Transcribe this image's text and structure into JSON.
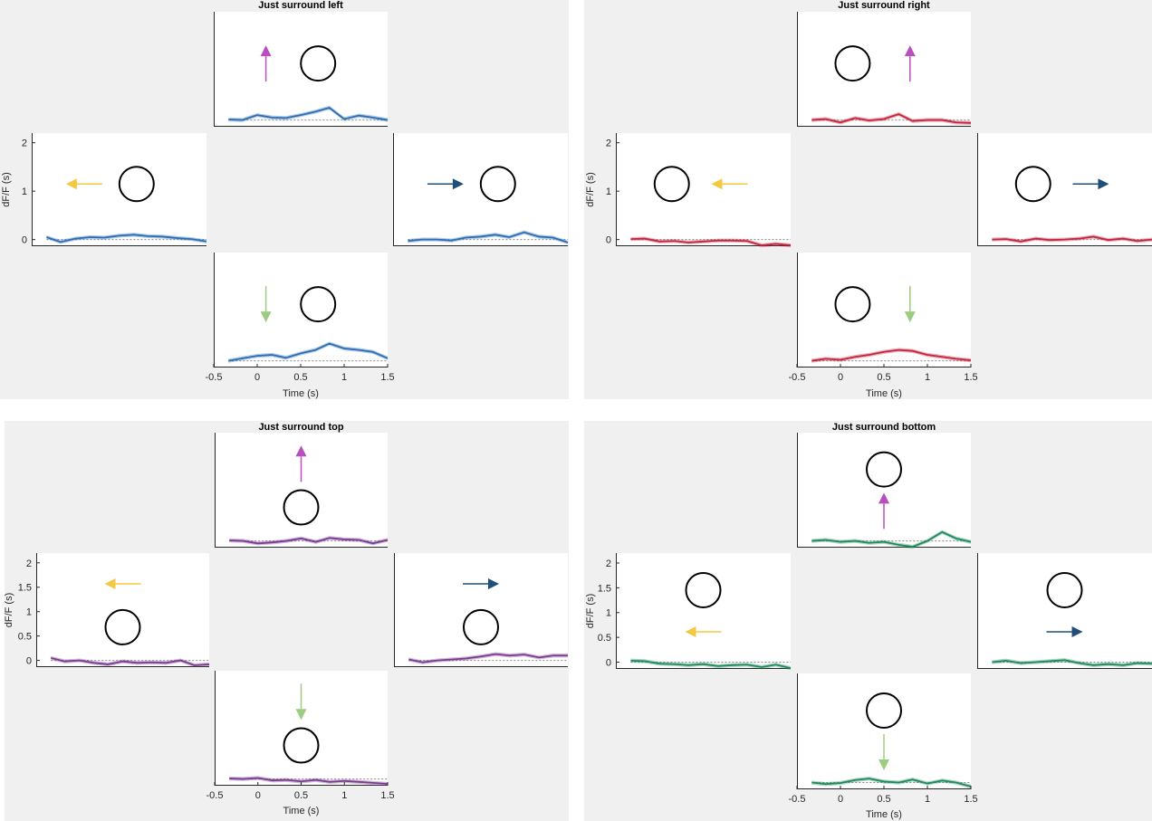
{
  "chart_data": [
    {
      "type": "line",
      "title": "Just surround left",
      "xlabel": "Time (s)",
      "ylabel": "dF/F (s)",
      "xlim": [
        -0.5,
        1.5
      ],
      "ylim": [
        -0.1,
        2.2
      ],
      "x_ticks": [
        "-0.5",
        "0",
        "0.5",
        "1",
        "1.5"
      ],
      "y_ticks": [
        "0",
        "1",
        "2"
      ],
      "line_color": "#2a6db4",
      "subplots": [
        {
          "position": "top",
          "direction": "up",
          "arrow_color": "#b94fbf",
          "circle_side": "right",
          "x": [
            -0.33,
            -0.17,
            0,
            0.17,
            0.33,
            0.5,
            0.67,
            0.83,
            1.0,
            1.17,
            1.33,
            1.5
          ],
          "y": [
            0.01,
            0.0,
            0.1,
            0.05,
            0.04,
            0.1,
            0.17,
            0.25,
            0.02,
            0.09,
            0.05,
            0.0
          ]
        },
        {
          "position": "left",
          "direction": "left",
          "arrow_color": "#f5c842",
          "circle_side": "right",
          "x": [
            -0.33,
            -0.17,
            0,
            0.17,
            0.33,
            0.5,
            0.67,
            0.83,
            1.0,
            1.17,
            1.33,
            1.5
          ],
          "y": [
            0.05,
            -0.05,
            0.02,
            0.05,
            0.04,
            0.08,
            0.1,
            0.07,
            0.06,
            0.03,
            0.01,
            -0.04
          ]
        },
        {
          "position": "right",
          "direction": "right",
          "arrow_color": "#1f4e79",
          "circle_side": "right",
          "x": [
            -0.33,
            -0.17,
            0,
            0.17,
            0.33,
            0.5,
            0.67,
            0.83,
            1.0,
            1.17,
            1.33,
            1.5
          ],
          "y": [
            -0.03,
            0.0,
            0.0,
            -0.02,
            0.04,
            0.06,
            0.1,
            0.05,
            0.15,
            0.06,
            0.04,
            -0.06
          ]
        },
        {
          "position": "bottom",
          "direction": "down",
          "arrow_color": "#9ccc7f",
          "circle_side": "right",
          "x": [
            -0.33,
            -0.17,
            0,
            0.17,
            0.33,
            0.5,
            0.67,
            0.83,
            1.0,
            1.17,
            1.33,
            1.5
          ],
          "y": [
            0.0,
            0.05,
            0.1,
            0.12,
            0.06,
            0.15,
            0.22,
            0.35,
            0.25,
            0.22,
            0.18,
            0.05
          ]
        }
      ]
    },
    {
      "type": "line",
      "title": "Just surround right",
      "xlabel": "Time (s)",
      "ylabel": "dF/F (s)",
      "xlim": [
        -0.5,
        1.5
      ],
      "ylim": [
        -0.1,
        2.2
      ],
      "x_ticks": [
        "-0.5",
        "0",
        "0.5",
        "1",
        "1.5"
      ],
      "y_ticks": [
        "0",
        "1",
        "2"
      ],
      "line_color": "#c0263e",
      "subplots": [
        {
          "position": "top",
          "direction": "up",
          "arrow_color": "#b94fbf",
          "circle_side": "left",
          "x": [
            -0.33,
            -0.17,
            0,
            0.17,
            0.33,
            0.5,
            0.67,
            0.83,
            1.0,
            1.17,
            1.33,
            1.5
          ],
          "y": [
            0.0,
            0.02,
            -0.05,
            0.04,
            -0.01,
            0.02,
            0.12,
            -0.02,
            0.0,
            0.0,
            -0.05,
            -0.06
          ]
        },
        {
          "position": "left",
          "direction": "left",
          "arrow_color": "#f5c842",
          "circle_side": "left",
          "x": [
            -0.33,
            -0.17,
            0,
            0.17,
            0.33,
            0.5,
            0.67,
            0.83,
            1.0,
            1.17,
            1.33,
            1.5
          ],
          "y": [
            0.01,
            0.02,
            -0.04,
            -0.03,
            -0.06,
            -0.04,
            -0.02,
            -0.02,
            -0.03,
            -0.12,
            -0.09,
            -0.12
          ]
        },
        {
          "position": "right",
          "direction": "right",
          "arrow_color": "#1f4e79",
          "circle_side": "left",
          "x": [
            -0.33,
            -0.17,
            0,
            0.17,
            0.33,
            0.5,
            0.67,
            0.83,
            1.0,
            1.17,
            1.33,
            1.5
          ],
          "y": [
            0.0,
            0.01,
            -0.04,
            0.02,
            -0.01,
            0.0,
            0.02,
            0.06,
            -0.01,
            0.02,
            -0.03,
            0.0
          ]
        },
        {
          "position": "bottom",
          "direction": "down",
          "arrow_color": "#9ccc7f",
          "circle_side": "left",
          "x": [
            -0.33,
            -0.17,
            0,
            0.17,
            0.33,
            0.5,
            0.67,
            0.83,
            1.0,
            1.17,
            1.33,
            1.5
          ],
          "y": [
            0.0,
            0.04,
            0.02,
            0.08,
            0.12,
            0.18,
            0.22,
            0.2,
            0.12,
            0.08,
            0.04,
            0.01
          ]
        }
      ]
    },
    {
      "type": "line",
      "title": "Just surround top",
      "xlabel": "Time (s)",
      "ylabel": "dF/F (s)",
      "xlim": [
        -0.5,
        1.5
      ],
      "ylim": [
        -0.1,
        2.2
      ],
      "x_ticks": [
        "-0.5",
        "0",
        "0.5",
        "1",
        "1.5"
      ],
      "y_ticks": [
        "0",
        "0.5",
        "1",
        "1.5",
        "2"
      ],
      "line_color": "#7a3b91",
      "subplots": [
        {
          "position": "top",
          "direction": "up",
          "arrow_color": "#b94fbf",
          "circle_side": "below",
          "x": [
            -0.33,
            -0.17,
            0,
            0.17,
            0.33,
            0.5,
            0.67,
            0.83,
            1.0,
            1.17,
            1.33,
            1.5
          ],
          "y": [
            0.01,
            0.0,
            -0.05,
            -0.03,
            0.0,
            0.05,
            -0.02,
            0.06,
            0.03,
            0.02,
            -0.05,
            0.02
          ]
        },
        {
          "position": "left",
          "direction": "left",
          "arrow_color": "#f5c842",
          "circle_side": "below",
          "x": [
            -0.33,
            -0.17,
            0,
            0.17,
            0.33,
            0.5,
            0.67,
            0.83,
            1.0,
            1.17,
            1.33,
            1.5
          ],
          "y": [
            0.05,
            -0.02,
            0.0,
            -0.05,
            -0.08,
            -0.02,
            -0.05,
            -0.04,
            -0.05,
            0.0,
            -0.1,
            -0.08
          ]
        },
        {
          "position": "right",
          "direction": "right",
          "arrow_color": "#1f4e79",
          "circle_side": "below",
          "x": [
            -0.33,
            -0.17,
            0,
            0.17,
            0.33,
            0.5,
            0.67,
            0.83,
            1.0,
            1.17,
            1.33,
            1.5
          ],
          "y": [
            0.02,
            -0.04,
            0.0,
            0.02,
            0.04,
            0.08,
            0.13,
            0.1,
            0.12,
            0.06,
            0.1,
            0.1
          ]
        },
        {
          "position": "bottom",
          "direction": "down",
          "arrow_color": "#9ccc7f",
          "circle_side": "below",
          "x": [
            -0.33,
            -0.17,
            0,
            0.17,
            0.33,
            0.5,
            0.67,
            0.83,
            1.0,
            1.17,
            1.33,
            1.5
          ],
          "y": [
            0.01,
            0.0,
            0.02,
            -0.03,
            -0.02,
            -0.05,
            -0.02,
            -0.06,
            -0.04,
            -0.06,
            -0.08,
            -0.1
          ]
        }
      ]
    },
    {
      "type": "line",
      "title": "Just surround bottom",
      "xlabel": "Time (s)",
      "ylabel": "dF/F (s)",
      "xlim": [
        -0.5,
        1.5
      ],
      "ylim": [
        -0.1,
        2.2
      ],
      "x_ticks": [
        "-0.5",
        "0",
        "0.5",
        "1",
        "1.5"
      ],
      "y_ticks": [
        "0",
        "0.5",
        "1",
        "1.5",
        "2"
      ],
      "line_color": "#1f8a5b",
      "subplots": [
        {
          "position": "top",
          "direction": "up",
          "arrow_color": "#b94fbf",
          "circle_side": "above",
          "x": [
            -0.33,
            -0.17,
            0,
            0.17,
            0.33,
            0.5,
            0.67,
            0.83,
            1.0,
            1.17,
            1.33,
            1.5
          ],
          "y": [
            0.0,
            0.02,
            -0.02,
            0.0,
            -0.04,
            -0.02,
            -0.08,
            -0.12,
            0.0,
            0.18,
            0.05,
            -0.02
          ]
        },
        {
          "position": "left",
          "direction": "left",
          "arrow_color": "#f5c842",
          "circle_side": "above",
          "x": [
            -0.33,
            -0.17,
            0,
            0.17,
            0.33,
            0.5,
            0.67,
            0.83,
            1.0,
            1.17,
            1.33,
            1.5
          ],
          "y": [
            0.03,
            0.02,
            -0.03,
            -0.04,
            -0.06,
            -0.04,
            -0.08,
            -0.06,
            -0.05,
            -0.1,
            -0.05,
            -0.12
          ]
        },
        {
          "position": "right",
          "direction": "right",
          "arrow_color": "#1f4e79",
          "circle_side": "above",
          "x": [
            -0.33,
            -0.17,
            0,
            0.17,
            0.33,
            0.5,
            0.67,
            0.83,
            1.0,
            1.17,
            1.33,
            1.5
          ],
          "y": [
            0.0,
            0.03,
            -0.02,
            0.0,
            0.02,
            0.04,
            -0.02,
            -0.06,
            -0.04,
            -0.06,
            -0.02,
            -0.03
          ]
        },
        {
          "position": "bottom",
          "direction": "down",
          "arrow_color": "#9ccc7f",
          "circle_side": "above",
          "x": [
            -0.33,
            -0.17,
            0,
            0.17,
            0.33,
            0.5,
            0.67,
            0.83,
            1.0,
            1.17,
            1.33,
            1.5
          ],
          "y": [
            0.0,
            -0.03,
            -0.01,
            0.05,
            0.08,
            0.02,
            0.0,
            0.06,
            -0.02,
            0.04,
            0.0,
            -0.08
          ]
        }
      ]
    }
  ]
}
